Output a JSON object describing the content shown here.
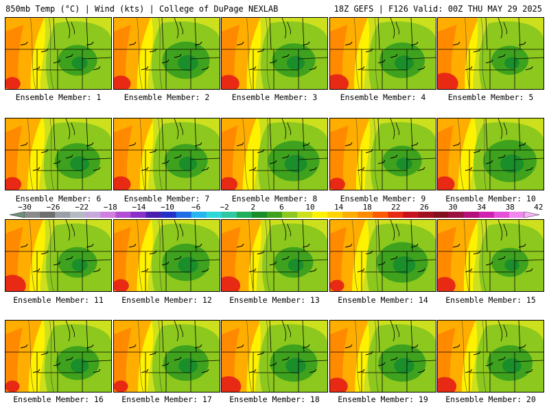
{
  "header": {
    "left": "850mb Temp (°C) | Wind (kts) | College of DuPage NEXLAB",
    "right": "18Z GEFS | F126 Valid: 00Z THU MAY 29 2025"
  },
  "colorbar": {
    "labels": [
      "−30",
      "−26",
      "−22",
      "−18",
      "−14",
      "−10",
      "−6",
      "−2",
      "2",
      "6",
      "10",
      "14",
      "18",
      "22",
      "26",
      "30",
      "34",
      "38",
      "42"
    ],
    "colors": [
      "#6f8f7c",
      "#8a8a8a",
      "#6e6e6e",
      "#9aa0a6",
      "#b4bac2",
      "#c8a8dc",
      "#d07ee0",
      "#b24ed6",
      "#8b2fc9",
      "#4a1fb0",
      "#2230c8",
      "#1e6ee6",
      "#27b4f0",
      "#2fd8d8",
      "#2ec9a0",
      "#1fae5a",
      "#1a8e2a",
      "#3ea21e",
      "#8cc81e",
      "#cde01e",
      "#fff200",
      "#ffd400",
      "#ffae00",
      "#ff8a00",
      "#ff5a00",
      "#e82a14",
      "#c8121e",
      "#a0101e",
      "#82101e",
      "#9a1040",
      "#b4107a",
      "#d020b0",
      "#e450d8",
      "#ee88ee",
      "#f4b4f4"
    ]
  },
  "members": [
    {
      "label": "Ensemble Member: 1"
    },
    {
      "label": "Ensemble Member: 2"
    },
    {
      "label": "Ensemble Member: 3"
    },
    {
      "label": "Ensemble Member: 4"
    },
    {
      "label": "Ensemble Member: 5"
    },
    {
      "label": "Ensemble Member: 6"
    },
    {
      "label": "Ensemble Member: 7"
    },
    {
      "label": "Ensemble Member: 8"
    },
    {
      "label": "Ensemble Member: 9"
    },
    {
      "label": "Ensemble Member: 10"
    },
    {
      "label": "Ensemble Member: 11"
    },
    {
      "label": "Ensemble Member: 12"
    },
    {
      "label": "Ensemble Member: 13"
    },
    {
      "label": "Ensemble Member: 14"
    },
    {
      "label": "Ensemble Member: 15"
    },
    {
      "label": "Ensemble Member: 16"
    },
    {
      "label": "Ensemble Member: 17"
    },
    {
      "label": "Ensemble Member: 18"
    },
    {
      "label": "Ensemble Member: 19"
    },
    {
      "label": "Ensemble Member: 20"
    }
  ],
  "map_colors": {
    "hot": "#e82a14",
    "warm_orange": "#ff8a00",
    "orange": "#ffae00",
    "yellow": "#fff200",
    "yellow_green": "#cde01e",
    "light_green": "#8cc81e",
    "green": "#3ea21e",
    "dark_green": "#1a8e2a",
    "border_line": "#000000"
  }
}
